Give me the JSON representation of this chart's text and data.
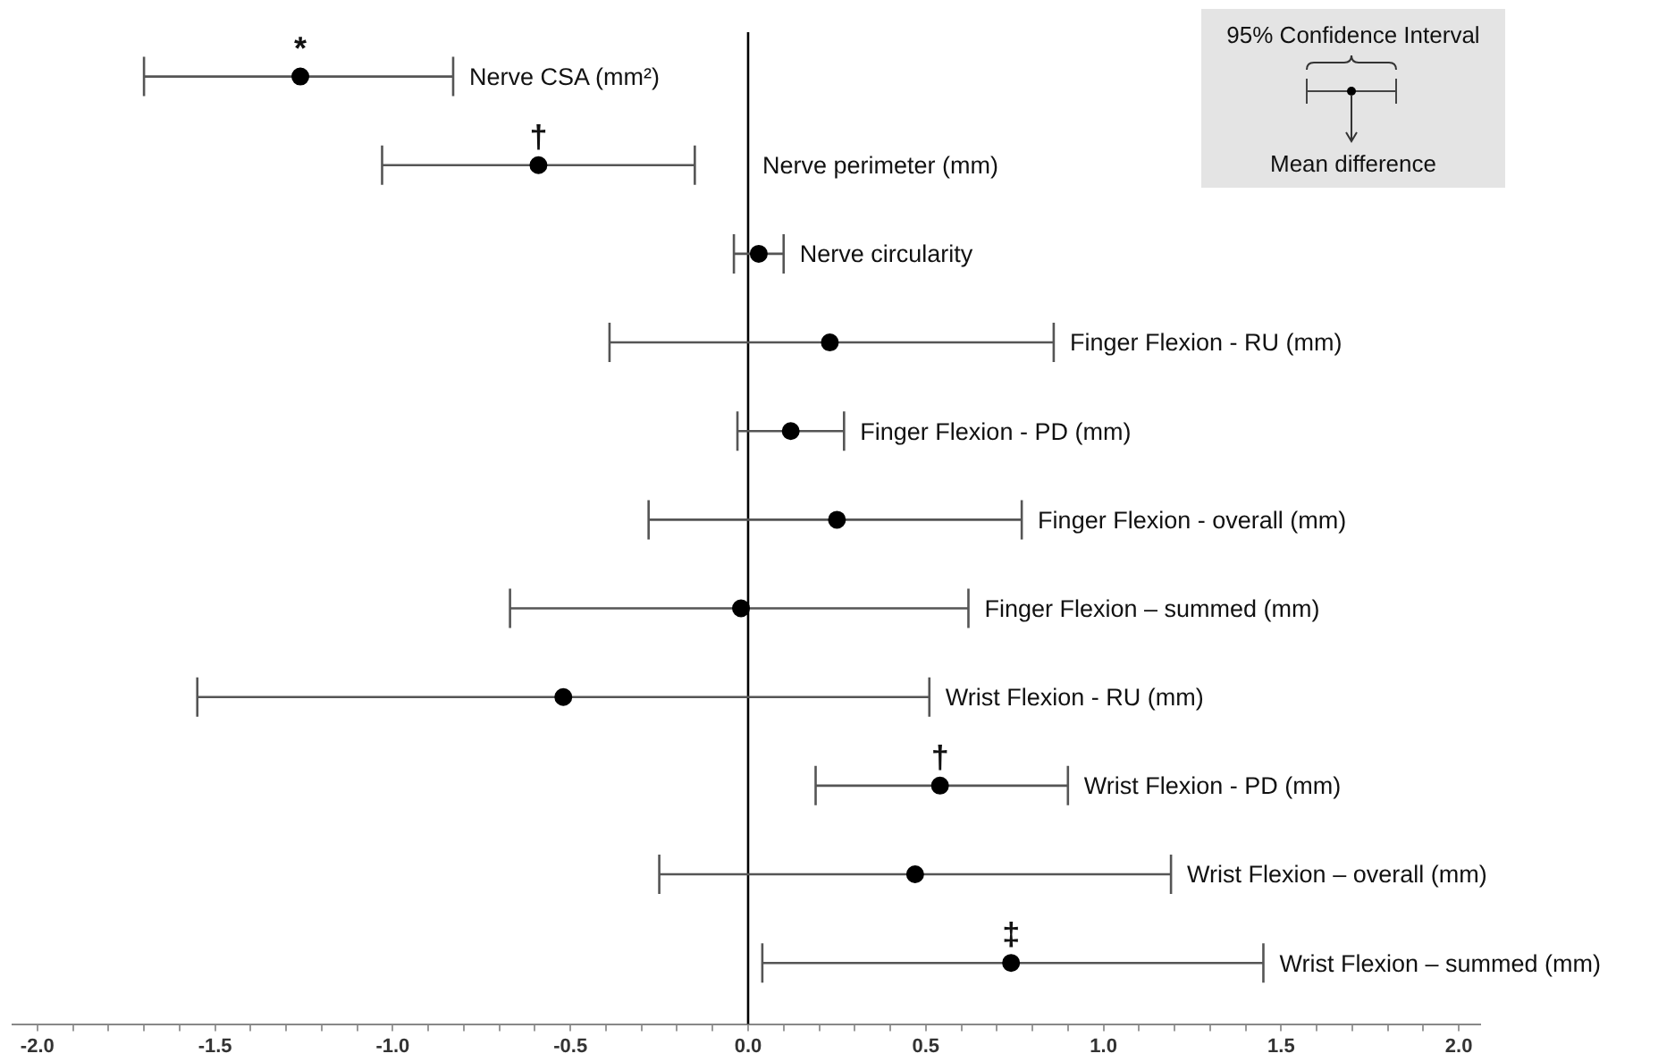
{
  "chart_data": {
    "type": "scatter",
    "orientation": "horizontal",
    "marker": "circle",
    "color": "#000000",
    "categories": [
      "Nerve CSA (mm²)",
      "Nerve perimeter (mm)",
      "Nerve circularity",
      "Finger Flexion - RU (mm)",
      "Finger Flexion - PD (mm)",
      "Finger Flexion - overall (mm)",
      "Finger Flexion – summed (mm)",
      "Wrist Flexion - RU (mm)",
      "Wrist Flexion - PD (mm)",
      "Wrist Flexion – overall (mm)",
      "Wrist Flexion – summed (mm)"
    ],
    "values": [
      -1.26,
      -0.59,
      0.03,
      0.23,
      0.12,
      0.25,
      -0.02,
      -0.52,
      0.54,
      0.47,
      0.74
    ],
    "errors": [
      [
        -1.7,
        -0.83
      ],
      [
        -1.03,
        -0.15
      ],
      [
        -0.04,
        0.1
      ],
      [
        -0.39,
        0.86
      ],
      [
        -0.03,
        0.27
      ],
      [
        -0.28,
        0.77
      ],
      [
        -0.67,
        0.62
      ],
      [
        -1.55,
        0.51
      ],
      [
        0.19,
        0.9
      ],
      [
        -0.25,
        1.19
      ],
      [
        0.04,
        1.45
      ]
    ],
    "xlim": [
      -2.07,
      2.06
    ],
    "xticks": [
      {
        "value": -2,
        "label": "-2.0"
      },
      {
        "value": -1.9,
        "label": null
      },
      {
        "value": -1.8,
        "label": null
      },
      {
        "value": -1.7,
        "label": null
      },
      {
        "value": -1.6,
        "label": null
      },
      {
        "value": -1.5,
        "label": "-1.5"
      },
      {
        "value": -1.4,
        "label": null
      },
      {
        "value": -1.3,
        "label": null
      },
      {
        "value": -1.2,
        "label": null
      },
      {
        "value": -1.1,
        "label": null
      },
      {
        "value": -1,
        "label": "-1.0"
      },
      {
        "value": -0.9,
        "label": null
      },
      {
        "value": -0.8,
        "label": null
      },
      {
        "value": -0.7,
        "label": null
      },
      {
        "value": -0.6,
        "label": null
      },
      {
        "value": -0.5,
        "label": "-0.5"
      },
      {
        "value": -0.4,
        "label": null
      },
      {
        "value": -0.3,
        "label": null
      },
      {
        "value": -0.2,
        "label": null
      },
      {
        "value": -0.1,
        "label": null
      },
      {
        "value": 0,
        "label": "0.0"
      },
      {
        "value": 0.1,
        "label": null
      },
      {
        "value": 0.2,
        "label": null
      },
      {
        "value": 0.3,
        "label": null
      },
      {
        "value": 0.4,
        "label": null
      },
      {
        "value": 0.5,
        "label": "0.5"
      },
      {
        "value": 0.6,
        "label": null
      },
      {
        "value": 0.7,
        "label": null
      },
      {
        "value": 0.8,
        "label": null
      },
      {
        "value": 0.9,
        "label": null
      },
      {
        "value": 1,
        "label": "1.0"
      },
      {
        "value": 1.1,
        "label": null
      },
      {
        "value": 1.2,
        "label": null
      },
      {
        "value": 1.3,
        "label": null
      },
      {
        "value": 1.4,
        "label": null
      },
      {
        "value": 1.5,
        "label": "1.5"
      },
      {
        "value": 1.6,
        "label": null
      },
      {
        "value": 1.7,
        "label": null
      },
      {
        "value": 1.8,
        "label": null
      },
      {
        "value": 1.9,
        "label": null
      },
      {
        "value": 2,
        "label": "2.0"
      }
    ],
    "ref_lines": [
      {
        "axis": "x",
        "value": 0,
        "color": "#000000"
      }
    ],
    "tick_labels": "x",
    "grid": false,
    "legend": false,
    "annotations": [
      {
        "text": "*",
        "x": -1.26,
        "y": "Nerve CSA (mm²)"
      },
      {
        "text": "†",
        "x": -0.59,
        "y": "Nerve perimeter (mm)"
      },
      {
        "text": "†",
        "x": 0.54,
        "y": "Wrist Flexion - PD (mm)"
      },
      {
        "text": "‡",
        "x": 0.74,
        "y": "Wrist Flexion – summed (mm)"
      },
      "95% Confidence Interval",
      "Mean difference"
    ]
  }
}
